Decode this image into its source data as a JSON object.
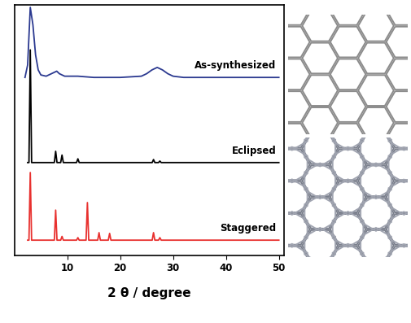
{
  "chart_data": {
    "type": "line",
    "x_label": "2 θ / degree",
    "xlim": [
      0,
      51
    ],
    "xticks": [
      10,
      20,
      30,
      40,
      50
    ],
    "ylim": [
      0,
      100
    ],
    "tick_labels": "x",
    "grid": false,
    "series": [
      {
        "name": "As-synthesized",
        "color": "#2b3990",
        "x": [
          2,
          2.5,
          3,
          3.5,
          4,
          4.5,
          5,
          6,
          7.5,
          8,
          8.5,
          9.5,
          12,
          15,
          20,
          24,
          25,
          26,
          27,
          28,
          29,
          30,
          32,
          35,
          40,
          45,
          50
        ],
        "values": [
          71,
          76,
          99,
          92,
          80,
          74,
          72,
          71.5,
          73,
          73.5,
          72.5,
          71.5,
          71.5,
          71,
          71,
          71.5,
          72.5,
          74,
          75,
          74,
          72.5,
          71.5,
          71,
          71,
          71,
          71,
          71
        ]
      },
      {
        "name": "Eclipsed",
        "color": "#000000",
        "x": [
          2.5,
          2.75,
          3,
          3.25,
          3.5,
          7.55,
          7.8,
          8.05,
          8.75,
          9,
          9.25,
          11.75,
          12,
          12.25,
          26.05,
          26.3,
          26.55,
          27.25,
          27.5,
          27.75,
          50
        ],
        "values": [
          37,
          37,
          82,
          37,
          37,
          37,
          41.5,
          37,
          37,
          40,
          37,
          37,
          38.5,
          37,
          37,
          38.2,
          37,
          37,
          37.6,
          37,
          37
        ]
      },
      {
        "name": "Staggered",
        "color": "#e8312f",
        "x": [
          2.5,
          2.75,
          3,
          3.25,
          3.5,
          7.55,
          7.8,
          8.05,
          8.75,
          9,
          9.25,
          11.75,
          12,
          12.25,
          13.55,
          13.8,
          14.05,
          15.75,
          16,
          16.25,
          17.75,
          18,
          18.25,
          26.05,
          26.3,
          26.55,
          27.25,
          27.5,
          27.75,
          50
        ],
        "values": [
          6,
          6,
          33,
          6,
          6,
          6,
          18,
          6,
          6,
          7.5,
          6,
          6,
          7,
          6,
          6,
          21,
          6,
          6,
          9,
          6,
          6,
          8.7,
          6,
          6,
          9,
          6,
          6,
          7,
          6,
          6
        ]
      }
    ]
  }
}
